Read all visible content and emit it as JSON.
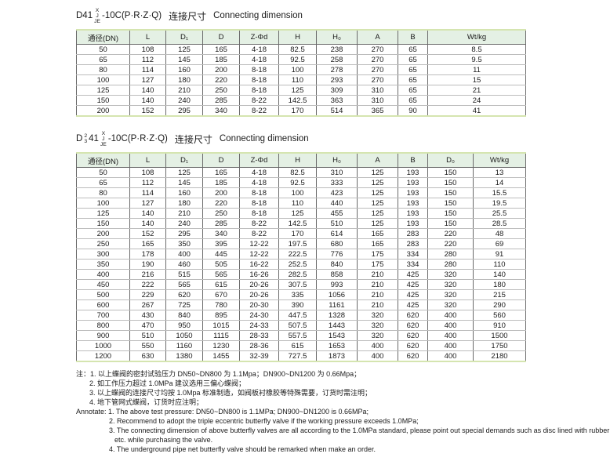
{
  "page": {
    "background": "#ffffff",
    "table_header_bg": "#e4f0e4",
    "table_accent_line": "#d5e5b0",
    "grid_line": "#6a6a6a",
    "row_line": "#bcbcbc"
  },
  "section1": {
    "title": {
      "prefix": "D41",
      "stack": [
        "X",
        "J",
        "JE"
      ],
      "suffix": "-10C(P·R·Z·Q)",
      "cn": "连接尺寸",
      "en": "Connecting dimension"
    },
    "table": {
      "headers": [
        "通径(DN)",
        "L",
        "D₁",
        "D",
        "Z-Φd",
        "H",
        "H₀",
        "A",
        "B",
        "Wt/kg"
      ],
      "rows": [
        [
          "50",
          "108",
          "125",
          "165",
          "4-18",
          "82.5",
          "238",
          "270",
          "65",
          "8.5"
        ],
        [
          "65",
          "112",
          "145",
          "185",
          "4-18",
          "92.5",
          "258",
          "270",
          "65",
          "9.5"
        ],
        [
          "80",
          "114",
          "160",
          "200",
          "8-18",
          "100",
          "278",
          "270",
          "65",
          "11"
        ],
        [
          "100",
          "127",
          "180",
          "220",
          "8-18",
          "110",
          "293",
          "270",
          "65",
          "15"
        ],
        [
          "125",
          "140",
          "210",
          "250",
          "8-18",
          "125",
          "309",
          "310",
          "65",
          "21"
        ],
        [
          "150",
          "140",
          "240",
          "285",
          "8-22",
          "142.5",
          "363",
          "310",
          "65",
          "24"
        ],
        [
          "200",
          "152",
          "295",
          "340",
          "8-22",
          "170",
          "514",
          "365",
          "90",
          "41"
        ]
      ]
    }
  },
  "section2": {
    "title": {
      "prefix": "D",
      "frac": [
        "2",
        "3"
      ],
      "mid": "41",
      "stack": [
        "X",
        "J",
        "JE"
      ],
      "suffix": "-10C(P·R·Z·Q)",
      "cn": "连接尺寸",
      "en": "Connecting dimension"
    },
    "table": {
      "headers": [
        "通径(DN)",
        "L",
        "D₁",
        "D",
        "Z-Φd",
        "H",
        "H₀",
        "A",
        "B",
        "D₀",
        "Wt/kg"
      ],
      "rows": [
        [
          "50",
          "108",
          "125",
          "165",
          "4-18",
          "82.5",
          "310",
          "125",
          "193",
          "150",
          "13"
        ],
        [
          "65",
          "112",
          "145",
          "185",
          "4-18",
          "92.5",
          "333",
          "125",
          "193",
          "150",
          "14"
        ],
        [
          "80",
          "114",
          "160",
          "200",
          "8-18",
          "100",
          "423",
          "125",
          "193",
          "150",
          "15.5"
        ],
        [
          "100",
          "127",
          "180",
          "220",
          "8-18",
          "110",
          "440",
          "125",
          "193",
          "150",
          "19.5"
        ],
        [
          "125",
          "140",
          "210",
          "250",
          "8-18",
          "125",
          "455",
          "125",
          "193",
          "150",
          "25.5"
        ],
        [
          "150",
          "140",
          "240",
          "285",
          "8-22",
          "142.5",
          "510",
          "125",
          "193",
          "150",
          "28.5"
        ],
        [
          "200",
          "152",
          "295",
          "340",
          "8-22",
          "170",
          "614",
          "165",
          "283",
          "220",
          "48"
        ],
        [
          "250",
          "165",
          "350",
          "395",
          "12-22",
          "197.5",
          "680",
          "165",
          "283",
          "220",
          "69"
        ],
        [
          "300",
          "178",
          "400",
          "445",
          "12-22",
          "222.5",
          "776",
          "175",
          "334",
          "280",
          "91"
        ],
        [
          "350",
          "190",
          "460",
          "505",
          "16-22",
          "252.5",
          "840",
          "175",
          "334",
          "280",
          "110"
        ],
        [
          "400",
          "216",
          "515",
          "565",
          "16-26",
          "282.5",
          "858",
          "210",
          "425",
          "320",
          "140"
        ],
        [
          "450",
          "222",
          "565",
          "615",
          "20-26",
          "307.5",
          "993",
          "210",
          "425",
          "320",
          "180"
        ],
        [
          "500",
          "229",
          "620",
          "670",
          "20-26",
          "335",
          "1056",
          "210",
          "425",
          "320",
          "215"
        ],
        [
          "600",
          "267",
          "725",
          "780",
          "20-30",
          "390",
          "1161",
          "210",
          "425",
          "320",
          "290"
        ],
        [
          "700",
          "430",
          "840",
          "895",
          "24-30",
          "447.5",
          "1328",
          "320",
          "620",
          "400",
          "560"
        ],
        [
          "800",
          "470",
          "950",
          "1015",
          "24-33",
          "507.5",
          "1443",
          "320",
          "620",
          "400",
          "910"
        ],
        [
          "900",
          "510",
          "1050",
          "1115",
          "28-33",
          "557.5",
          "1543",
          "320",
          "620",
          "400",
          "1500"
        ],
        [
          "1000",
          "550",
          "1160",
          "1230",
          "28-36",
          "615",
          "1653",
          "400",
          "620",
          "400",
          "1750"
        ],
        [
          "1200",
          "630",
          "1380",
          "1455",
          "32-39",
          "727.5",
          "1873",
          "400",
          "620",
          "400",
          "2180"
        ]
      ]
    }
  },
  "notes_cn": [
    {
      "level": 0,
      "text": "注：1. 以上蝶阀的密封试验压力 DN50~DN800 为 1.1Mpa；DN900~DN1200 为 0.66Mpa；"
    },
    {
      "level": 1,
      "text": "2. 如工作压力超过 1.0MPa 建议选用三偏心蝶阀；"
    },
    {
      "level": 1,
      "text": "3. 以上蝶阀的连接尺寸均按 1.0Mpa 标准制造，如阀板衬橡胶等特殊需要，订货时需注明；"
    },
    {
      "level": 1,
      "text": "4. 地下管网式蝶阀，订货时应注明；"
    }
  ],
  "notes_en": [
    {
      "level": 0,
      "text": "Annotate: 1. The above test pressure: DN50~DN800 is 1.1MPa; DN900~DN1200 is 0.66MPa;"
    },
    {
      "level": 1,
      "text": "2. Recommend to adopt the triple eccentric butterfly valve if the working pressure exceeds 1.0MPa;"
    },
    {
      "level": 1,
      "text": "3. The connecting dimension of above butterfly valves are all according to the 1.0MPa standard, please point out special demands such as disc lined with rubber"
    },
    {
      "level": 2,
      "text": "etc. while purchasing the valve."
    },
    {
      "level": 1,
      "text": "4. The underground pipe net butterfly valve should be remarked when make an order."
    }
  ]
}
